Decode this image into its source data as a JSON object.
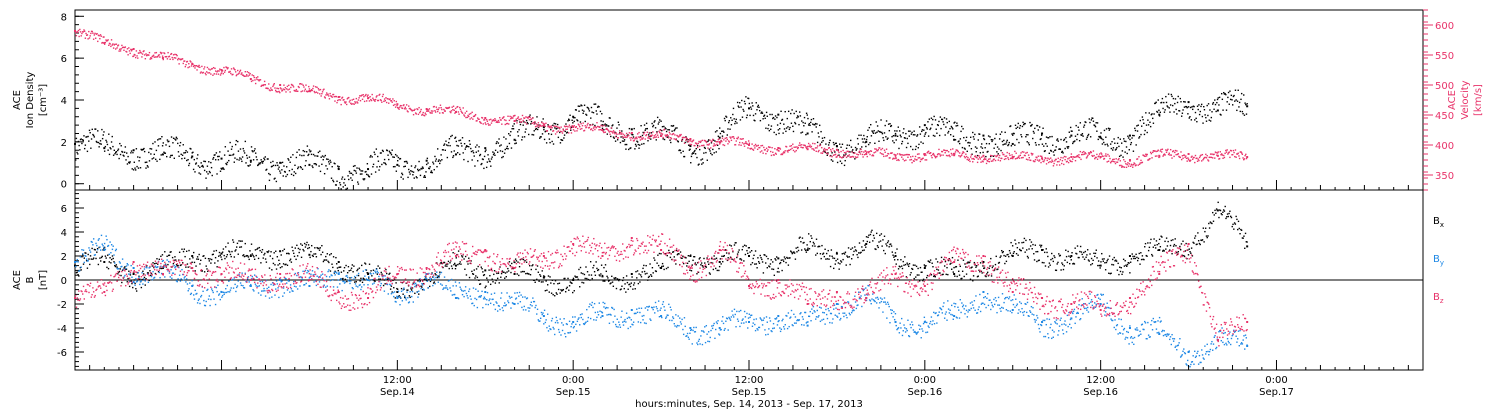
{
  "chart_data": [
    {
      "type": "scatter",
      "panel": "top",
      "left_axis": {
        "label_lines": [
          "ACE",
          "Ion Density"
        ],
        "unit": "[cm⁻³]",
        "ylim": [
          -0.3,
          8.3
        ],
        "ticks": [
          0,
          2,
          4,
          6,
          8
        ],
        "color": "#000000"
      },
      "right_axis": {
        "label_lines": [
          "ACE",
          "Velocity"
        ],
        "unit": "[km/s]",
        "ylim": [
          325,
          625
        ],
        "ticks": [
          350,
          400,
          450,
          500,
          550,
          600
        ],
        "color": "#e8336a"
      },
      "series": [
        {
          "color": "#000000",
          "axis": "left",
          "x": [
            -10,
            -8,
            -6,
            -4,
            -2,
            0,
            2,
            4,
            6,
            8,
            10,
            12,
            14,
            16,
            18,
            20,
            22,
            24,
            26,
            28,
            30,
            32,
            34,
            36,
            38,
            40,
            42,
            44,
            46,
            48,
            50,
            52,
            54,
            56,
            58,
            60,
            62,
            64,
            66,
            68,
            70
          ],
          "y": [
            1.9,
            1.7,
            1.6,
            1.4,
            1.3,
            1.2,
            1.1,
            1.0,
            0.9,
            0.7,
            0.7,
            0.9,
            1.1,
            1.4,
            1.7,
            2.1,
            2.7,
            3.2,
            2.8,
            2.6,
            2.3,
            1.8,
            2.2,
            3.6,
            3.3,
            2.4,
            1.8,
            2.0,
            2.3,
            2.8,
            2.1,
            2.3,
            1.9,
            2.4,
            2.3,
            2.2,
            2.3,
            3.3,
            3.9,
            3.5,
            3.7
          ]
        },
        {
          "color": "#e8336a",
          "axis": "right",
          "x": [
            -10,
            -8,
            -6,
            -4,
            -2,
            0,
            2,
            4,
            6,
            8,
            10,
            12,
            14,
            16,
            18,
            20,
            22,
            24,
            26,
            28,
            30,
            32,
            34,
            36,
            38,
            40,
            42,
            44,
            46,
            48,
            50,
            52,
            54,
            56,
            58,
            60,
            62,
            64,
            66,
            68,
            70
          ],
          "y": [
            590,
            570,
            560,
            545,
            535,
            525,
            510,
            500,
            490,
            480,
            478,
            468,
            460,
            455,
            445,
            440,
            433,
            430,
            425,
            420,
            415,
            410,
            405,
            400,
            395,
            393,
            392,
            385,
            383,
            385,
            383,
            382,
            380,
            378,
            380,
            380,
            375,
            382,
            385,
            382,
            380
          ]
        }
      ]
    },
    {
      "type": "scatter",
      "panel": "bottom",
      "left_axis": {
        "label_lines": [
          "ACE",
          "B"
        ],
        "unit": "[nT]",
        "ylim": [
          -7.5,
          7.5
        ],
        "ticks": [
          -6,
          -4,
          -2,
          0,
          2,
          4,
          6
        ],
        "color": "#000000"
      },
      "zero_line": true,
      "legend": "right",
      "series": [
        {
          "name": "Bx",
          "color": "#000000",
          "x": [
            -10,
            -8,
            -6,
            -4,
            -2,
            0,
            2,
            4,
            6,
            8,
            10,
            12,
            14,
            16,
            18,
            20,
            22,
            24,
            26,
            28,
            30,
            32,
            34,
            36,
            38,
            40,
            42,
            44,
            46,
            48,
            50,
            52,
            54,
            56,
            58,
            60,
            62,
            64,
            66,
            68,
            70
          ],
          "y": [
            1.2,
            1.5,
            0.5,
            1.0,
            2.0,
            2.2,
            2.0,
            2.4,
            2.1,
            1.5,
            0.5,
            -1.0,
            0.5,
            1.2,
            0.8,
            0.5,
            0.2,
            0.0,
            0.3,
            0.5,
            1.0,
            2.0,
            1.5,
            2.0,
            1.8,
            2.5,
            2.2,
            3.0,
            2.0,
            1.0,
            0.5,
            1.5,
            2.0,
            2.5,
            2.0,
            1.2,
            2.0,
            2.5,
            3.0,
            5.8,
            2.8
          ]
        },
        {
          "name": "By",
          "color": "#1e88e5",
          "x": [
            -10,
            -8,
            -6,
            -4,
            -2,
            0,
            2,
            4,
            6,
            8,
            10,
            12,
            14,
            16,
            18,
            20,
            22,
            24,
            26,
            28,
            30,
            32,
            34,
            36,
            38,
            40,
            42,
            44,
            46,
            48,
            50,
            52,
            54,
            56,
            58,
            60,
            62,
            64,
            66,
            68,
            70
          ],
          "y": [
            1.5,
            2.5,
            1.0,
            0.5,
            -0.5,
            -1.0,
            -0.5,
            0.0,
            -0.5,
            0.5,
            0.0,
            -1.5,
            0.5,
            -1.5,
            -1.0,
            -2.0,
            -3.0,
            -3.5,
            -3.0,
            -2.5,
            -3.0,
            -4.0,
            -4.0,
            -3.5,
            -3.0,
            -3.8,
            -2.0,
            -1.5,
            -3.5,
            -3.5,
            -3.0,
            -1.0,
            -2.5,
            -3.5,
            -3.2,
            -2.0,
            -4.0,
            -4.5,
            -6.0,
            -5.0,
            -5.5
          ]
        },
        {
          "name": "Bz",
          "color": "#e8336a",
          "x": [
            -10,
            -8,
            -6,
            -4,
            -2,
            0,
            2,
            4,
            6,
            8,
            10,
            12,
            14,
            16,
            18,
            20,
            22,
            24,
            26,
            28,
            30,
            32,
            34,
            36,
            38,
            40,
            42,
            44,
            46,
            48,
            50,
            52,
            54,
            56,
            58,
            60,
            62,
            64,
            66,
            68,
            70
          ],
          "y": [
            -1.5,
            -1.0,
            1.5,
            0.5,
            1.0,
            0.5,
            0.0,
            0.5,
            0.0,
            -1.0,
            -1.5,
            0.5,
            1.0,
            2.0,
            2.5,
            1.0,
            2.0,
            3.0,
            2.0,
            3.5,
            2.5,
            1.0,
            2.5,
            -0.5,
            0.0,
            -2.0,
            -1.0,
            -1.5,
            0.5,
            -0.5,
            1.5,
            2.0,
            -1.0,
            -1.5,
            -2.0,
            -2.5,
            -1.5,
            0.5,
            3.0,
            -5.0,
            -3.5
          ]
        }
      ]
    }
  ],
  "legend_labels": {
    "bx_main": "B",
    "bx_sub": "x",
    "by_main": "B",
    "by_sub": "y",
    "bz_main": "B",
    "bz_sub": "z"
  },
  "x_axis": {
    "xlim": [
      -10,
      82
    ],
    "ticks": [
      {
        "hours": 12,
        "time": "12:00",
        "date": "Sep.14"
      },
      {
        "hours": 24,
        "time": "0:00",
        "date": "Sep.15"
      },
      {
        "hours": 36,
        "time": "12:00",
        "date": "Sep.15"
      },
      {
        "hours": 48,
        "time": "0:00",
        "date": "Sep.16"
      },
      {
        "hours": 60,
        "time": "12:00",
        "date": "Sep.16"
      },
      {
        "hours": 72,
        "time": "0:00",
        "date": "Sep.17"
      }
    ],
    "title": "hours:minutes, Sep. 14, 2013 - Sep. 17, 2013"
  }
}
